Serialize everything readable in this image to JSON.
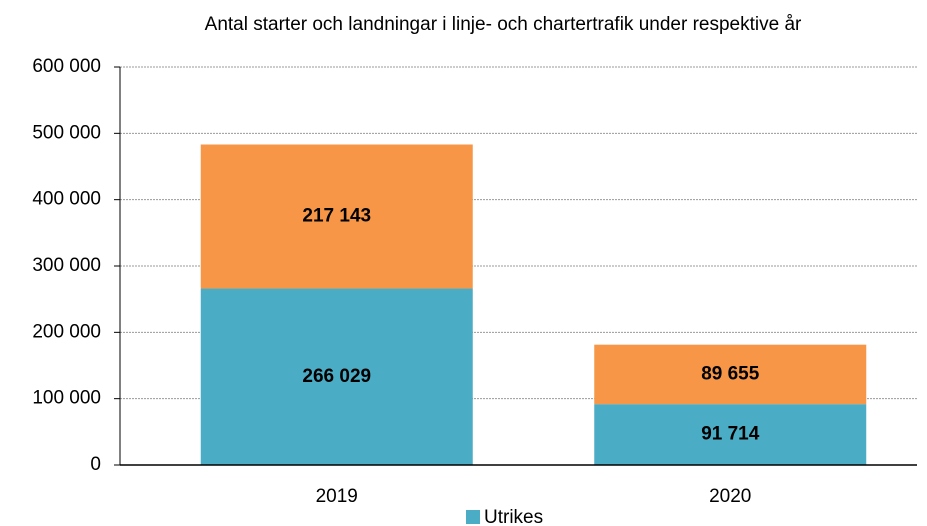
{
  "chart_data": {
    "type": "stacked_bar",
    "title": "Antal starter och landningar i linje- och chartertrafik under respektive år",
    "categories": [
      "2019",
      "2020"
    ],
    "series": [
      {
        "name": "Utrikes",
        "color": "#4bacc6",
        "values": [
          266029,
          91714
        ],
        "value_labels": [
          "266 029",
          "91 714"
        ]
      },
      {
        "color": "#f79646",
        "values": [
          217143,
          89655
        ],
        "value_labels": [
          "217 143",
          "89 655"
        ]
      }
    ],
    "ylim": [
      0,
      600000
    ],
    "yticks": [
      0,
      {
        "value": 100000,
        "label": "100 000"
      },
      {
        "value": 200000,
        "label": "200 000"
      },
      {
        "value": 300000,
        "label": "300 000"
      },
      {
        "value": 400000,
        "label": "400 000"
      },
      {
        "value": 500000,
        "label": "500 000"
      },
      {
        "value": 600000,
        "label": "600 000"
      }
    ],
    "grid": true
  }
}
